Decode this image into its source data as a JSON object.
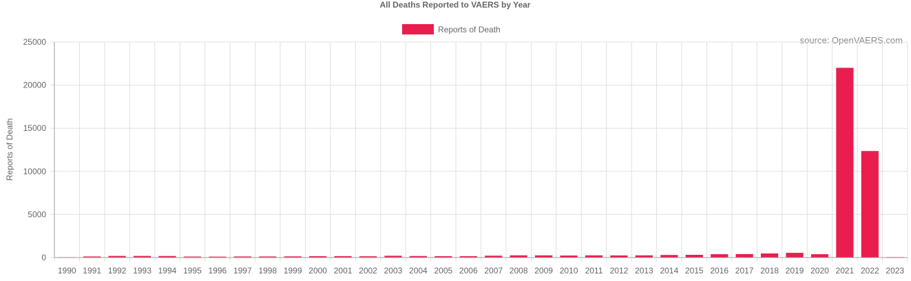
{
  "chart_data": {
    "type": "bar",
    "title": "All Deaths Reported to VAERS by Year",
    "legend_position": "top-center",
    "xlabel": "",
    "ylabel": "Reports of Death",
    "ylim": [
      0,
      25000
    ],
    "y_ticks": [
      0,
      5000,
      10000,
      15000,
      20000,
      25000
    ],
    "grid": true,
    "categories": [
      "1990",
      "1991",
      "1992",
      "1993",
      "1994",
      "1995",
      "1996",
      "1997",
      "1998",
      "1999",
      "2000",
      "2001",
      "2002",
      "2003",
      "2004",
      "2005",
      "2006",
      "2007",
      "2008",
      "2009",
      "2010",
      "2011",
      "2012",
      "2013",
      "2014",
      "2015",
      "2016",
      "2017",
      "2018",
      "2019",
      "2020",
      "2021",
      "2022",
      "2023"
    ],
    "series": [
      {
        "name": "Reports of Death",
        "color": "#e91e4e",
        "values": [
          90,
          170,
          230,
          230,
          220,
          160,
          150,
          170,
          170,
          180,
          200,
          210,
          190,
          250,
          220,
          200,
          200,
          260,
          300,
          300,
          280,
          300,
          290,
          300,
          340,
          360,
          430,
          450,
          520,
          590,
          430,
          22050,
          12400,
          100
        ]
      }
    ],
    "annotation": "source: OpenVAERS.com"
  }
}
